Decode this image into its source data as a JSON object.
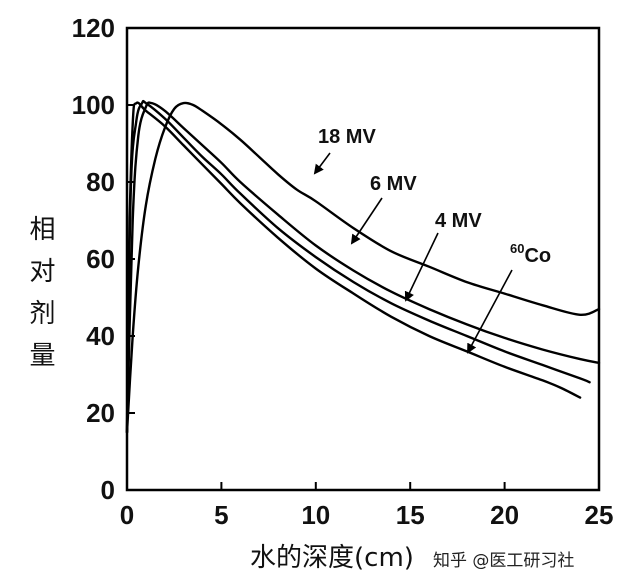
{
  "chart_data": {
    "type": "line",
    "xlabel": "水的深度(cm)",
    "ylabel": "相对剂量",
    "xlim": [
      0,
      25
    ],
    "ylim": [
      0,
      120
    ],
    "xticks": [
      "0",
      "5",
      "10",
      "15",
      "20",
      "25"
    ],
    "yticks": [
      "0",
      "20",
      "40",
      "60",
      "80",
      "100",
      "120"
    ],
    "grid": false,
    "series": [
      {
        "name": "18 MV",
        "x": [
          0,
          0.3,
          0.6,
          1.0,
          1.5,
          2.0,
          2.5,
          3.0,
          3.5,
          4.0,
          5.0,
          6.0,
          7.0,
          8.0,
          9.0,
          10.0,
          12.0,
          14.0,
          16.0,
          18.0,
          20.0,
          22.0,
          24.0,
          25.0
        ],
        "y": [
          15,
          40,
          58,
          74,
          86,
          94,
          99,
          100.5,
          100,
          98.5,
          95,
          91,
          86.5,
          82,
          78,
          75,
          68,
          62,
          58,
          54,
          51,
          48,
          45.5,
          47
        ]
      },
      {
        "name": "6 MV",
        "x": [
          0,
          0.3,
          0.6,
          1.0,
          1.3,
          2.0,
          3.0,
          4.0,
          5.0,
          6.0,
          8.0,
          10.0,
          12.0,
          14.0,
          16.0,
          18.0,
          20.0,
          22.0,
          24.0,
          25.0
        ],
        "y": [
          15,
          70,
          92,
          99.5,
          100.5,
          98.5,
          94,
          89.5,
          85,
          80,
          71.5,
          63.5,
          57,
          51.5,
          47,
          43,
          39.5,
          36.5,
          34,
          33
        ]
      },
      {
        "name": "4 MV",
        "x": [
          0,
          0.2,
          0.5,
          0.8,
          1.0,
          2.0,
          3.0,
          4.0,
          5.0,
          6.0,
          8.0,
          10.0,
          12.0,
          14.0,
          16.0,
          18.0,
          20.0,
          22.0,
          24.0,
          24.5
        ],
        "y": [
          15,
          78,
          96,
          100.5,
          100.5,
          96.5,
          91.5,
          86.5,
          82,
          77,
          68,
          60.5,
          54,
          48.5,
          44,
          40,
          36,
          32.5,
          29,
          28
        ]
      },
      {
        "name": "60Co",
        "x": [
          0,
          0.1,
          0.3,
          0.5,
          1.0,
          2.0,
          3.0,
          4.0,
          5.0,
          6.0,
          8.0,
          10.0,
          12.0,
          14.0,
          16.0,
          18.0,
          20.0,
          22.0,
          23.0,
          24.0
        ],
        "y": [
          15,
          60,
          95,
          100.5,
          98.5,
          94.5,
          89.5,
          84.5,
          79.5,
          74.5,
          65.5,
          57.5,
          51,
          45,
          40,
          36,
          32,
          28.5,
          26.5,
          24
        ]
      }
    ],
    "annotations": [
      {
        "series": "18 MV",
        "text": "18 MV"
      },
      {
        "series": "6 MV",
        "text": "6 MV"
      },
      {
        "series": "4 MV",
        "text": "4 MV"
      },
      {
        "series": "60Co",
        "sup": "60",
        "text": "Co"
      }
    ]
  },
  "watermark": "知乎 @医工研习社"
}
